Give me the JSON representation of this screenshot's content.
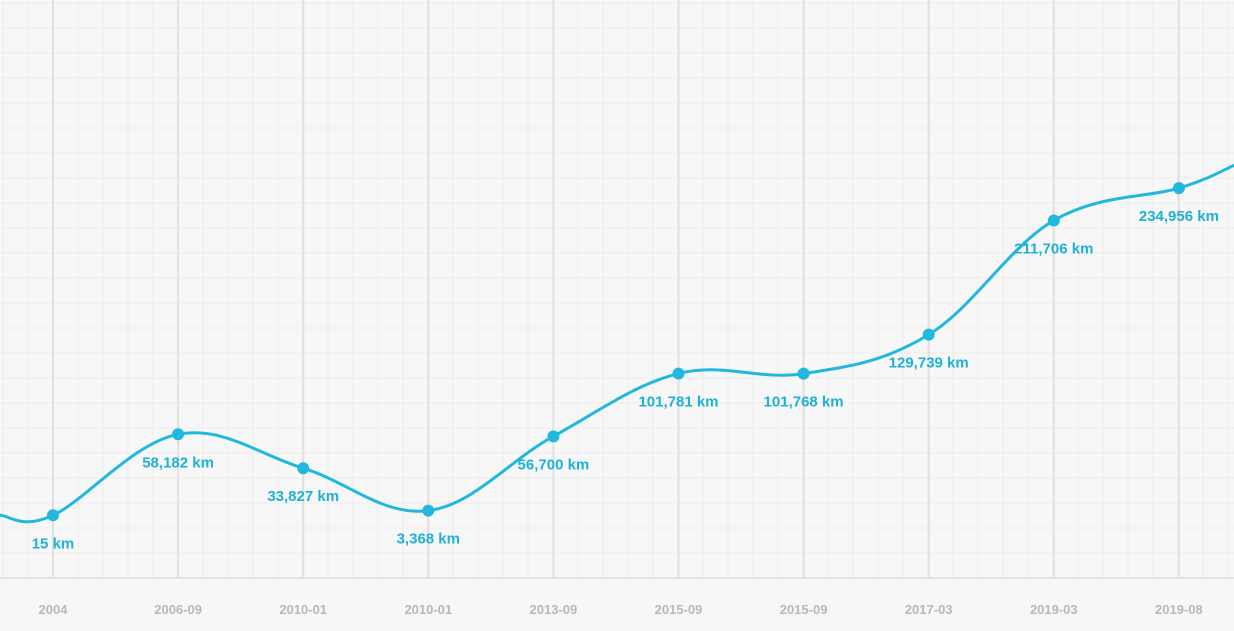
{
  "chart_data": {
    "type": "line",
    "categories": [
      "2004",
      "2006-09",
      "2010-01",
      "2010-01",
      "2013-09",
      "2015-09",
      "2015-09",
      "2017-03",
      "2019-03",
      "2019-08"
    ],
    "series": [
      {
        "values": [
          15,
          58182,
          33827,
          3368,
          56700,
          101781,
          101768,
          129739,
          211706,
          234956
        ],
        "labels": [
          "15 km",
          "58,182 km",
          "33,827 km",
          "3,368 km",
          "56,700 km",
          "101,781 km",
          "101,768 km",
          "129,739 km",
          "211,706 km",
          "234,956 km"
        ]
      }
    ],
    "ylim": [
      -45000,
      370000
    ],
    "grid": true,
    "colors": {
      "line": "#22b8de",
      "label": "#1fb0d6",
      "tick": "#b8b8b8",
      "background": "#f7f7f7",
      "grid_minor": "#ececec",
      "grid_major": "#e0e0e0"
    }
  }
}
